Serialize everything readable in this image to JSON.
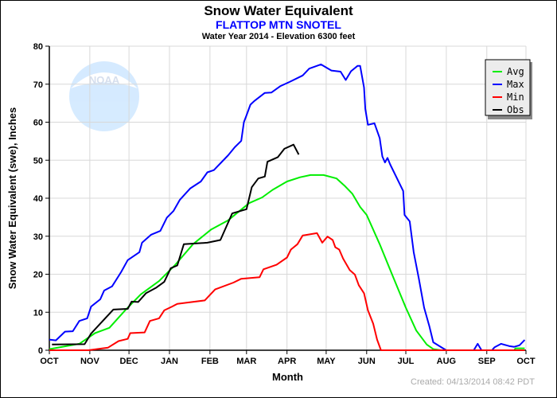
{
  "chart_data": {
    "type": "line",
    "title": "Snow Water Equivalent",
    "subtitle": "FLATTOP MTN SNOTEL",
    "subtitle2": "Water Year 2014 -  Elevation 6300 feet",
    "xlabel": "Month",
    "ylabel": "Snow Water Equivalent (swe),  Inches",
    "xlim": [
      "2013-10-01",
      "2014-10-01"
    ],
    "ylim": [
      0,
      80
    ],
    "x_tick_labels": [
      "OCT",
      "NOV",
      "DEC",
      "JAN",
      "FEB",
      "MAR",
      "APR",
      "MAY",
      "JUN",
      "JUL",
      "AUG",
      "SEP",
      "OCT"
    ],
    "y_ticks": [
      0,
      10,
      20,
      30,
      40,
      50,
      60,
      70,
      80
    ],
    "grid": true,
    "legend_position": "top-right",
    "footer": "Created: 04/13/2014 08:42 PDT",
    "logo_text": "NOAA",
    "series": [
      {
        "name": "Avg",
        "color": "#00ee00",
        "points": [
          [
            "2013-10-01",
            0.3
          ],
          [
            "2013-10-24",
            1.7
          ],
          [
            "2013-11-05",
            4.5
          ],
          [
            "2013-11-16",
            5.9
          ],
          [
            "2013-11-28",
            10.5
          ],
          [
            "2013-12-10",
            14.7
          ],
          [
            "2013-12-24",
            18.2
          ],
          [
            "2014-01-05",
            22.3
          ],
          [
            "2014-01-19",
            27.9
          ],
          [
            "2014-02-02",
            31.8
          ],
          [
            "2014-02-15",
            34.2
          ],
          [
            "2014-03-03",
            38.7
          ],
          [
            "2014-03-13",
            40.2
          ],
          [
            "2014-03-21",
            42.2
          ],
          [
            "2014-04-01",
            44.4
          ],
          [
            "2014-04-11",
            45.5
          ],
          [
            "2014-04-19",
            46.1
          ],
          [
            "2014-04-29",
            46.1
          ],
          [
            "2014-05-09",
            45.2
          ],
          [
            "2014-05-15",
            43.3
          ],
          [
            "2014-05-21",
            41.2
          ],
          [
            "2014-05-27",
            37.7
          ],
          [
            "2014-06-01",
            35.6
          ],
          [
            "2014-06-11",
            27.9
          ],
          [
            "2014-06-21",
            19.5
          ],
          [
            "2014-07-01",
            11.2
          ],
          [
            "2014-07-09",
            5.2
          ],
          [
            "2014-07-17",
            1.5
          ],
          [
            "2014-07-22",
            0.3
          ],
          [
            "2014-07-28",
            0
          ],
          [
            "2014-09-22",
            0
          ],
          [
            "2014-09-23",
            0.5
          ],
          [
            "2014-09-30",
            0.5
          ]
        ]
      },
      {
        "name": "Max",
        "color": "#0000ff",
        "points": [
          [
            "2013-10-01",
            2.8
          ],
          [
            "2013-10-06",
            2.6
          ],
          [
            "2013-10-13",
            4.9
          ],
          [
            "2013-10-19",
            5
          ],
          [
            "2013-10-24",
            7.7
          ],
          [
            "2013-10-30",
            8.4
          ],
          [
            "2013-11-02",
            11.5
          ],
          [
            "2013-11-09",
            13.4
          ],
          [
            "2013-11-12",
            15.7
          ],
          [
            "2013-11-18",
            16.8
          ],
          [
            "2013-11-25",
            20.6
          ],
          [
            "2013-11-30",
            23.7
          ],
          [
            "2013-12-09",
            25.8
          ],
          [
            "2013-12-11",
            28.3
          ],
          [
            "2013-12-18",
            30.4
          ],
          [
            "2013-12-25",
            31.4
          ],
          [
            "2013-12-30",
            34.9
          ],
          [
            "2014-01-04",
            36.6
          ],
          [
            "2014-01-09",
            39.6
          ],
          [
            "2014-01-17",
            42.6
          ],
          [
            "2014-01-25",
            44.4
          ],
          [
            "2014-01-30",
            46.8
          ],
          [
            "2014-02-04",
            47.4
          ],
          [
            "2014-02-15",
            51.3
          ],
          [
            "2014-02-20",
            53.4
          ],
          [
            "2014-02-25",
            55.1
          ],
          [
            "2014-02-27",
            60
          ],
          [
            "2014-03-01",
            61.8
          ],
          [
            "2014-03-04",
            64.6
          ],
          [
            "2014-03-07",
            65.6
          ],
          [
            "2014-03-15",
            67.7
          ],
          [
            "2014-03-20",
            67.8
          ],
          [
            "2014-03-27",
            69.5
          ],
          [
            "2014-04-03",
            70.6
          ],
          [
            "2014-04-13",
            72.3
          ],
          [
            "2014-04-18",
            74.1
          ],
          [
            "2014-04-27",
            75.2
          ],
          [
            "2014-05-05",
            73.6
          ],
          [
            "2014-05-12",
            73.3
          ],
          [
            "2014-05-16",
            71.1
          ],
          [
            "2014-05-20",
            73.4
          ],
          [
            "2014-05-25",
            74.8
          ],
          [
            "2014-05-27",
            74.8
          ],
          [
            "2014-05-30",
            69.1
          ],
          [
            "2014-05-31",
            63.5
          ],
          [
            "2014-06-02",
            59.3
          ],
          [
            "2014-06-07",
            59.7
          ],
          [
            "2014-06-11",
            55.8
          ],
          [
            "2014-06-13",
            51
          ],
          [
            "2014-06-15",
            49.4
          ],
          [
            "2014-06-17",
            50.6
          ],
          [
            "2014-06-19",
            48.9
          ],
          [
            "2014-06-29",
            41.9
          ],
          [
            "2014-06-30",
            35.6
          ],
          [
            "2014-07-04",
            33.9
          ],
          [
            "2014-07-07",
            25.8
          ],
          [
            "2014-07-11",
            18.8
          ],
          [
            "2014-07-15",
            11.2
          ],
          [
            "2014-07-19",
            6.3
          ],
          [
            "2014-07-22",
            2.1
          ],
          [
            "2014-07-29",
            0.6
          ],
          [
            "2014-08-01",
            0
          ],
          [
            "2014-08-22",
            0
          ],
          [
            "2014-08-25",
            1.7
          ],
          [
            "2014-08-28",
            0
          ],
          [
            "2014-09-05",
            0
          ],
          [
            "2014-09-07",
            0.8
          ],
          [
            "2014-09-12",
            1.7
          ],
          [
            "2014-09-18",
            1.1
          ],
          [
            "2014-09-22",
            0.9
          ],
          [
            "2014-09-26",
            1.3
          ],
          [
            "2014-09-30",
            2.7
          ]
        ]
      },
      {
        "name": "Min",
        "color": "#ff0000",
        "points": [
          [
            "2013-10-01",
            0
          ],
          [
            "2013-10-31",
            0
          ],
          [
            "2013-11-15",
            0.7
          ],
          [
            "2013-11-23",
            2.4
          ],
          [
            "2013-11-30",
            3
          ],
          [
            "2013-12-02",
            4.5
          ],
          [
            "2013-12-13",
            4.7
          ],
          [
            "2013-12-17",
            7.7
          ],
          [
            "2013-12-24",
            8.4
          ],
          [
            "2013-12-28",
            10.5
          ],
          [
            "2014-01-03",
            11.5
          ],
          [
            "2014-01-07",
            12.2
          ],
          [
            "2014-01-28",
            13.1
          ],
          [
            "2014-02-05",
            16
          ],
          [
            "2014-02-19",
            17.8
          ],
          [
            "2014-02-25",
            18.8
          ],
          [
            "2014-03-11",
            19.2
          ],
          [
            "2014-03-14",
            21.3
          ],
          [
            "2014-03-24",
            22.5
          ],
          [
            "2014-04-01",
            24.4
          ],
          [
            "2014-04-04",
            26.5
          ],
          [
            "2014-04-09",
            27.9
          ],
          [
            "2014-04-13",
            30.2
          ],
          [
            "2014-04-24",
            30.8
          ],
          [
            "2014-04-28",
            28.3
          ],
          [
            "2014-05-02",
            29.9
          ],
          [
            "2014-05-06",
            29
          ],
          [
            "2014-05-08",
            27.1
          ],
          [
            "2014-05-11",
            26.5
          ],
          [
            "2014-05-14",
            24.1
          ],
          [
            "2014-05-19",
            21.1
          ],
          [
            "2014-05-23",
            19.9
          ],
          [
            "2014-05-26",
            17.1
          ],
          [
            "2014-05-30",
            15
          ],
          [
            "2014-06-02",
            10.5
          ],
          [
            "2014-06-06",
            7
          ],
          [
            "2014-06-09",
            2.8
          ],
          [
            "2014-06-12",
            0
          ],
          [
            "2014-09-30",
            0
          ]
        ]
      },
      {
        "name": "Obs",
        "color": "#000000",
        "points": [
          [
            "2013-10-03",
            1.5
          ],
          [
            "2013-10-28",
            1.6
          ],
          [
            "2013-11-02",
            4.4
          ],
          [
            "2013-11-09",
            7
          ],
          [
            "2013-11-19",
            10.7
          ],
          [
            "2013-11-30",
            10.9
          ],
          [
            "2013-12-03",
            12.8
          ],
          [
            "2013-12-08",
            12.7
          ],
          [
            "2013-12-14",
            15
          ],
          [
            "2013-12-22",
            16.5
          ],
          [
            "2013-12-28",
            18
          ],
          [
            "2014-01-02",
            21.6
          ],
          [
            "2014-01-07",
            22.3
          ],
          [
            "2014-01-12",
            27.9
          ],
          [
            "2014-01-30",
            28.3
          ],
          [
            "2014-02-09",
            29
          ],
          [
            "2014-02-18",
            36
          ],
          [
            "2014-03-01",
            37.1
          ],
          [
            "2014-03-05",
            42.9
          ],
          [
            "2014-03-10",
            45.2
          ],
          [
            "2014-03-15",
            45.7
          ],
          [
            "2014-03-17",
            49.6
          ],
          [
            "2014-03-25",
            50.8
          ],
          [
            "2014-03-30",
            53
          ],
          [
            "2014-04-06",
            54.1
          ],
          [
            "2014-04-10",
            51.5
          ]
        ]
      }
    ]
  }
}
